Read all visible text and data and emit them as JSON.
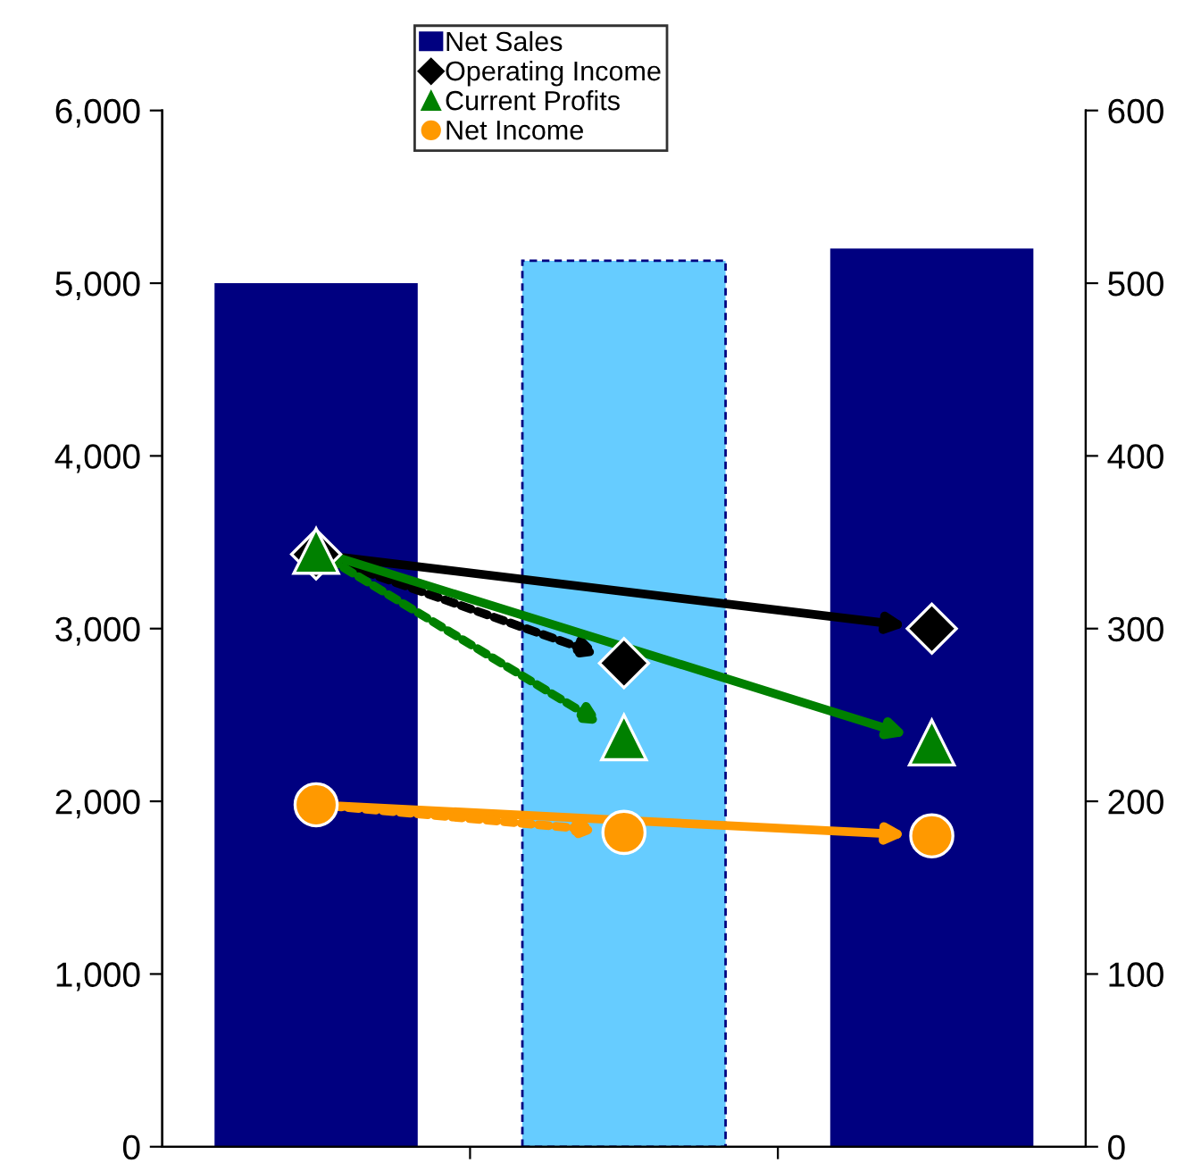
{
  "chart_data": {
    "type": "bar",
    "categories": [
      null,
      null,
      null
    ],
    "series": [
      {
        "name": "Net Sales",
        "color": "#000080",
        "colors": [
          "#000080",
          "#66ccff",
          "#000080"
        ],
        "values": [
          5000,
          5130,
          5200
        ]
      },
      {
        "name": "Operating Income",
        "type": "scatter",
        "axis": "y2",
        "color": "#000000",
        "marker": "diamond",
        "values": [
          343,
          280,
          300
        ]
      },
      {
        "name": "Current Profits",
        "type": "scatter",
        "axis": "y2",
        "color": "#008000",
        "marker": "triangle",
        "values": [
          345,
          237,
          234
        ]
      },
      {
        "name": "Net Income",
        "type": "scatter",
        "axis": "y2",
        "color": "#ff9900",
        "marker": "circle",
        "values": [
          198,
          182,
          180
        ]
      }
    ],
    "ylim": [
      0,
      6000
    ],
    "yticks": [
      0,
      {
        "value": 1000,
        "label": "1,000"
      },
      {
        "value": 2000,
        "label": "2,000"
      },
      {
        "value": 3000,
        "label": "3,000"
      },
      {
        "value": 4000,
        "label": "4,000"
      },
      {
        "value": 5000,
        "label": "5,000"
      },
      {
        "value": 6000,
        "label": "6,000"
      }
    ],
    "y2lim": [
      0,
      600
    ],
    "y2ticks": [
      0,
      100,
      200,
      300,
      400,
      500,
      600
    ],
    "grid": false,
    "legend": "top"
  }
}
